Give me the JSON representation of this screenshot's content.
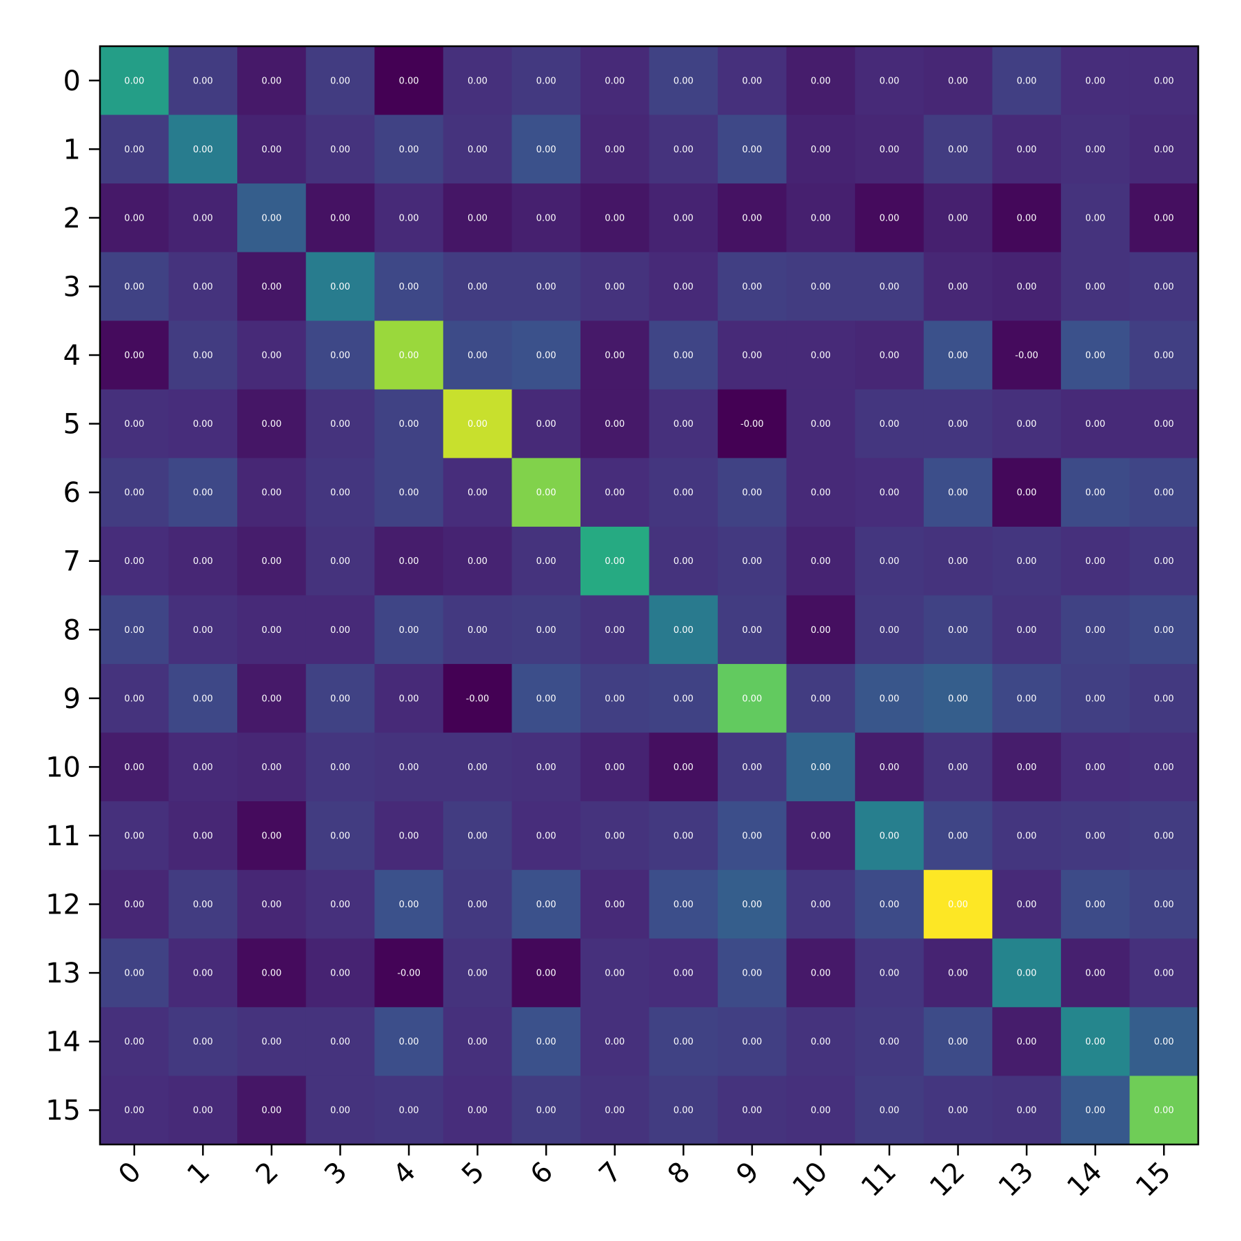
{
  "chart_data": {
    "type": "heatmap",
    "title": "",
    "xlabel": "",
    "ylabel": "",
    "colormap": "viridis",
    "grid": false,
    "x_categories": [
      "0",
      "1",
      "2",
      "3",
      "4",
      "5",
      "6",
      "7",
      "8",
      "9",
      "10",
      "11",
      "12",
      "13",
      "14",
      "15"
    ],
    "y_categories": [
      "0",
      "1",
      "2",
      "3",
      "4",
      "5",
      "6",
      "7",
      "8",
      "9",
      "10",
      "11",
      "12",
      "13",
      "14",
      "15"
    ],
    "cell_labels": [
      [
        "0.00",
        "0.00",
        "0.00",
        "0.00",
        "0.00",
        "0.00",
        "0.00",
        "0.00",
        "0.00",
        "0.00",
        "0.00",
        "0.00",
        "0.00",
        "0.00",
        "0.00",
        "0.00"
      ],
      [
        "0.00",
        "0.00",
        "0.00",
        "0.00",
        "0.00",
        "0.00",
        "0.00",
        "0.00",
        "0.00",
        "0.00",
        "0.00",
        "0.00",
        "0.00",
        "0.00",
        "0.00",
        "0.00"
      ],
      [
        "0.00",
        "0.00",
        "0.00",
        "0.00",
        "0.00",
        "0.00",
        "0.00",
        "0.00",
        "0.00",
        "0.00",
        "0.00",
        "0.00",
        "0.00",
        "0.00",
        "0.00",
        "0.00"
      ],
      [
        "0.00",
        "0.00",
        "0.00",
        "0.00",
        "0.00",
        "0.00",
        "0.00",
        "0.00",
        "0.00",
        "0.00",
        "0.00",
        "0.00",
        "0.00",
        "0.00",
        "0.00",
        "0.00"
      ],
      [
        "0.00",
        "0.00",
        "0.00",
        "0.00",
        "0.00",
        "0.00",
        "0.00",
        "0.00",
        "0.00",
        "0.00",
        "0.00",
        "0.00",
        "0.00",
        "-0.00",
        "0.00",
        "0.00"
      ],
      [
        "0.00",
        "0.00",
        "0.00",
        "0.00",
        "0.00",
        "0.00",
        "0.00",
        "0.00",
        "0.00",
        "-0.00",
        "0.00",
        "0.00",
        "0.00",
        "0.00",
        "0.00",
        "0.00"
      ],
      [
        "0.00",
        "0.00",
        "0.00",
        "0.00",
        "0.00",
        "0.00",
        "0.00",
        "0.00",
        "0.00",
        "0.00",
        "0.00",
        "0.00",
        "0.00",
        "0.00",
        "0.00",
        "0.00"
      ],
      [
        "0.00",
        "0.00",
        "0.00",
        "0.00",
        "0.00",
        "0.00",
        "0.00",
        "0.00",
        "0.00",
        "0.00",
        "0.00",
        "0.00",
        "0.00",
        "0.00",
        "0.00",
        "0.00"
      ],
      [
        "0.00",
        "0.00",
        "0.00",
        "0.00",
        "0.00",
        "0.00",
        "0.00",
        "0.00",
        "0.00",
        "0.00",
        "0.00",
        "0.00",
        "0.00",
        "0.00",
        "0.00",
        "0.00"
      ],
      [
        "0.00",
        "0.00",
        "0.00",
        "0.00",
        "0.00",
        "-0.00",
        "0.00",
        "0.00",
        "0.00",
        "0.00",
        "0.00",
        "0.00",
        "0.00",
        "0.00",
        "0.00",
        "0.00"
      ],
      [
        "0.00",
        "0.00",
        "0.00",
        "0.00",
        "0.00",
        "0.00",
        "0.00",
        "0.00",
        "0.00",
        "0.00",
        "0.00",
        "0.00",
        "0.00",
        "0.00",
        "0.00",
        "0.00"
      ],
      [
        "0.00",
        "0.00",
        "0.00",
        "0.00",
        "0.00",
        "0.00",
        "0.00",
        "0.00",
        "0.00",
        "0.00",
        "0.00",
        "0.00",
        "0.00",
        "0.00",
        "0.00",
        "0.00"
      ],
      [
        "0.00",
        "0.00",
        "0.00",
        "0.00",
        "0.00",
        "0.00",
        "0.00",
        "0.00",
        "0.00",
        "0.00",
        "0.00",
        "0.00",
        "0.00",
        "0.00",
        "0.00",
        "0.00"
      ],
      [
        "0.00",
        "0.00",
        "0.00",
        "0.00",
        "-0.00",
        "0.00",
        "0.00",
        "0.00",
        "0.00",
        "0.00",
        "0.00",
        "0.00",
        "0.00",
        "0.00",
        "0.00",
        "0.00"
      ],
      [
        "0.00",
        "0.00",
        "0.00",
        "0.00",
        "0.00",
        "0.00",
        "0.00",
        "0.00",
        "0.00",
        "0.00",
        "0.00",
        "0.00",
        "0.00",
        "0.00",
        "0.00",
        "0.00"
      ],
      [
        "0.00",
        "0.00",
        "0.00",
        "0.00",
        "0.00",
        "0.00",
        "0.00",
        "0.00",
        "0.00",
        "0.00",
        "0.00",
        "0.00",
        "0.00",
        "0.00",
        "0.00",
        "0.00"
      ]
    ],
    "intensity": [
      [
        0.56,
        0.18,
        0.07,
        0.18,
        0.0,
        0.14,
        0.17,
        0.12,
        0.2,
        0.14,
        0.08,
        0.12,
        0.11,
        0.19,
        0.13,
        0.13
      ],
      [
        0.18,
        0.42,
        0.1,
        0.15,
        0.2,
        0.15,
        0.25,
        0.11,
        0.15,
        0.22,
        0.1,
        0.11,
        0.18,
        0.12,
        0.14,
        0.12
      ],
      [
        0.07,
        0.1,
        0.3,
        0.05,
        0.12,
        0.06,
        0.09,
        0.06,
        0.1,
        0.05,
        0.09,
        0.03,
        0.09,
        0.02,
        0.15,
        0.04
      ],
      [
        0.2,
        0.15,
        0.06,
        0.42,
        0.22,
        0.18,
        0.18,
        0.15,
        0.12,
        0.19,
        0.18,
        0.18,
        0.11,
        0.1,
        0.15,
        0.16
      ],
      [
        0.03,
        0.18,
        0.12,
        0.22,
        0.85,
        0.23,
        0.25,
        0.07,
        0.21,
        0.12,
        0.12,
        0.11,
        0.25,
        0.03,
        0.25,
        0.19
      ],
      [
        0.14,
        0.13,
        0.06,
        0.15,
        0.2,
        0.92,
        0.12,
        0.07,
        0.14,
        0.0,
        0.12,
        0.16,
        0.16,
        0.14,
        0.12,
        0.12
      ],
      [
        0.18,
        0.22,
        0.11,
        0.16,
        0.2,
        0.13,
        0.81,
        0.13,
        0.16,
        0.2,
        0.12,
        0.13,
        0.24,
        0.02,
        0.23,
        0.21
      ],
      [
        0.13,
        0.11,
        0.08,
        0.15,
        0.08,
        0.1,
        0.15,
        0.61,
        0.15,
        0.17,
        0.1,
        0.16,
        0.15,
        0.16,
        0.14,
        0.16
      ],
      [
        0.21,
        0.14,
        0.12,
        0.12,
        0.21,
        0.17,
        0.18,
        0.15,
        0.41,
        0.18,
        0.04,
        0.17,
        0.2,
        0.15,
        0.2,
        0.22
      ],
      [
        0.15,
        0.22,
        0.07,
        0.2,
        0.12,
        0.0,
        0.24,
        0.19,
        0.2,
        0.76,
        0.18,
        0.27,
        0.3,
        0.22,
        0.19,
        0.17
      ],
      [
        0.08,
        0.12,
        0.11,
        0.16,
        0.15,
        0.15,
        0.14,
        0.1,
        0.04,
        0.17,
        0.33,
        0.08,
        0.15,
        0.08,
        0.13,
        0.14
      ],
      [
        0.14,
        0.11,
        0.03,
        0.18,
        0.12,
        0.18,
        0.13,
        0.15,
        0.17,
        0.24,
        0.09,
        0.43,
        0.21,
        0.16,
        0.17,
        0.18
      ],
      [
        0.11,
        0.18,
        0.11,
        0.14,
        0.25,
        0.17,
        0.25,
        0.12,
        0.24,
        0.3,
        0.16,
        0.23,
        1.0,
        0.12,
        0.23,
        0.2
      ],
      [
        0.2,
        0.12,
        0.03,
        0.1,
        0.01,
        0.15,
        0.02,
        0.14,
        0.13,
        0.23,
        0.07,
        0.16,
        0.1,
        0.45,
        0.09,
        0.14
      ],
      [
        0.14,
        0.17,
        0.15,
        0.15,
        0.24,
        0.14,
        0.25,
        0.14,
        0.2,
        0.19,
        0.15,
        0.17,
        0.23,
        0.08,
        0.46,
        0.3
      ],
      [
        0.13,
        0.12,
        0.06,
        0.15,
        0.16,
        0.13,
        0.18,
        0.15,
        0.18,
        0.15,
        0.14,
        0.18,
        0.16,
        0.15,
        0.28,
        0.78
      ]
    ],
    "x_tick_rotation_deg": 45
  }
}
